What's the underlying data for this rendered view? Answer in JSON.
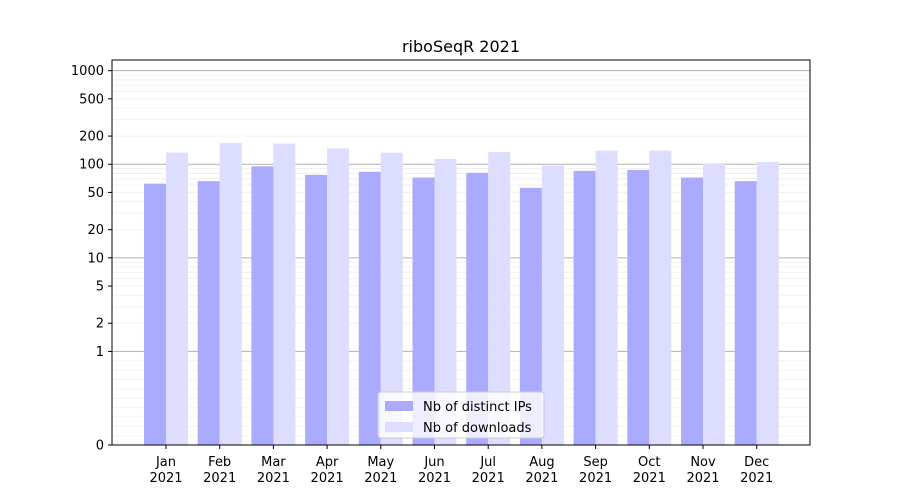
{
  "chart_data": {
    "type": "bar",
    "title": "riboSeqR 2021",
    "xlabel": "",
    "ylabel": "",
    "y_scale": "symlog",
    "ylim": [
      0,
      1300
    ],
    "y_ticks": [
      0,
      1,
      2,
      5,
      10,
      20,
      50,
      100,
      200,
      500,
      1000
    ],
    "grid": true,
    "legend_position": "bottom-center",
    "categories": [
      "Jan\n2021",
      "Feb\n2021",
      "Mar\n2021",
      "Apr\n2021",
      "May\n2021",
      "Jun\n2021",
      "Jul\n2021",
      "Aug\n2021",
      "Sep\n2021",
      "Oct\n2021",
      "Nov\n2021",
      "Dec\n2021"
    ],
    "series": [
      {
        "name": "Nb of distinct IPs",
        "color": "#aaaaff",
        "values": [
          62,
          66,
          95,
          77,
          83,
          72,
          81,
          56,
          85,
          87,
          72,
          66
        ]
      },
      {
        "name": "Nb of downloads",
        "color": "#ddddff",
        "values": [
          133,
          168,
          166,
          148,
          133,
          114,
          135,
          97,
          140,
          140,
          101,
          106
        ]
      }
    ]
  }
}
